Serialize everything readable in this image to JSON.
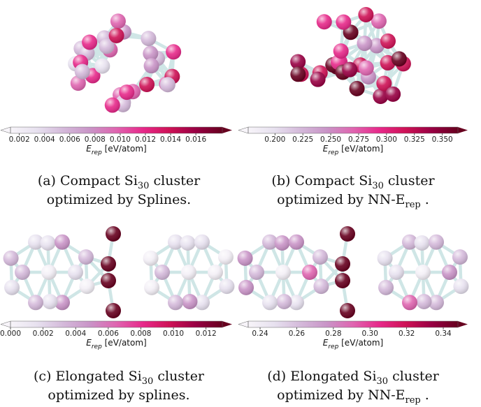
{
  "panels": [
    {
      "colorbar": {
        "lim": [
          0.0013,
          0.0181
        ],
        "ticks": [
          0.002,
          0.004,
          0.006,
          0.008,
          {
            "value": 0.01,
            "label": "0.010"
          },
          0.012,
          0.014,
          0.016
        ],
        "label": [
          {
            "text": "E",
            "italic": true
          },
          {
            "text": "rep",
            "sub": true,
            "italic": true
          },
          {
            "text": " [eV/atom]"
          }
        ]
      },
      "caption": [
        [
          {
            "text": "(a) Compact Si"
          },
          {
            "text": "30",
            "sub": true
          },
          {
            "text": " cluster"
          }
        ],
        [
          {
            "text": "optimized by Splines."
          }
        ]
      ]
    },
    {
      "colorbar": {
        "lim": [
          0.176,
          0.364
        ],
        "ticks": [
          {
            "value": 0.2,
            "label": "0.200"
          },
          0.225,
          {
            "value": 0.25,
            "label": "0.250"
          },
          0.275,
          {
            "value": 0.3,
            "label": "0.300"
          },
          0.325,
          {
            "value": 0.35,
            "label": "0.350"
          }
        ],
        "label": [
          {
            "text": "E",
            "italic": true
          },
          {
            "text": "rep",
            "sub": true,
            "italic": true
          },
          {
            "text": " [eV/atom]"
          }
        ]
      },
      "caption": [
        [
          {
            "text": "(b) Compact Si"
          },
          {
            "text": "30",
            "sub": true
          },
          {
            "text": " cluster"
          }
        ],
        [
          {
            "text": "optimized by NN-E"
          },
          {
            "text": "rep",
            "sub": true
          },
          {
            "text": " ."
          }
        ]
      ]
    },
    {
      "colorbar": {
        "lim": [
          0,
          0.013
        ],
        "ticks": [
          {
            "value": 0,
            "label": "0.000"
          },
          0.002,
          0.004,
          0.006,
          0.008,
          {
            "value": 0.01,
            "label": "0.010"
          },
          0.012
        ],
        "label": [
          {
            "text": "E",
            "italic": true
          },
          {
            "text": "rep",
            "sub": true,
            "italic": true
          },
          {
            "text": " [eV/atom]"
          }
        ]
      },
      "caption": [
        [
          {
            "text": "(c) Elongated Si"
          },
          {
            "text": "30",
            "sub": true
          },
          {
            "text": " cluster"
          }
        ],
        [
          {
            "text": "optimized by splines."
          }
        ]
      ]
    },
    {
      "colorbar": {
        "lim": [
          0.2335,
          0.348
        ],
        "ticks": [
          0.24,
          0.26,
          0.28,
          {
            "value": 0.3,
            "label": "0.30"
          },
          0.32,
          0.34
        ],
        "label": [
          {
            "text": "E",
            "italic": true
          },
          {
            "text": "rep",
            "sub": true,
            "italic": true
          },
          {
            "text": " [eV/atom]"
          }
        ]
      },
      "caption": [
        [
          {
            "text": "(d) Elongated Si"
          },
          {
            "text": "30",
            "sub": true
          },
          {
            "text": " cluster"
          }
        ],
        [
          {
            "text": "optimized by NN-E"
          },
          {
            "text": "rep",
            "sub": true
          },
          {
            "text": " ."
          }
        ]
      ]
    }
  ]
}
